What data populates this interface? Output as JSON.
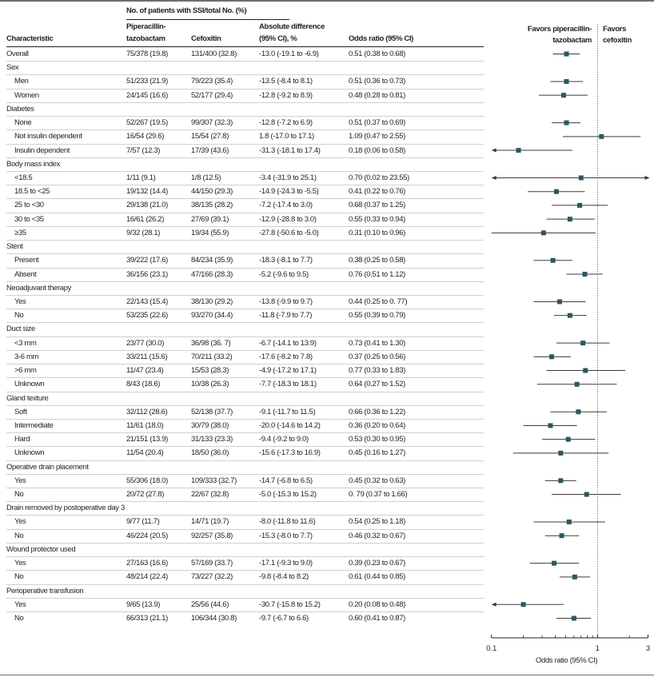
{
  "header": {
    "group_label": "No. of patients with SSI/total No. (%)",
    "characteristic": "Characteristic",
    "pip_line1": "Piperacillin-",
    "pip_line2": "tazobactam",
    "cefoxitin": "Cefoxitin",
    "absdiff_line1": "Absolute difference",
    "absdiff_line2": "(95% CI), %",
    "or": "Odds ratio (95% CI)",
    "favors_left_line1": "Favors piperacillin-",
    "favors_left_line2": "tazobactam",
    "favors_right_line1": "Favors",
    "favors_right_line2": "cefoxitin"
  },
  "chart_data": {
    "type": "forest",
    "xlabel": "Odds ratio (95% CI)",
    "xscale": "log",
    "xlim": [
      0.1,
      3
    ],
    "xticks": [
      0.1,
      1,
      3
    ],
    "xtick_labels": [
      "0.1",
      "1",
      "3"
    ],
    "minor_ticks": [
      0.2,
      0.3,
      0.4,
      0.5,
      0.6,
      0.7,
      0.8,
      0.9,
      2
    ],
    "reference_line": 1,
    "colors": {
      "marker": "#2c5663",
      "line": "#3a3a3a"
    },
    "rows": [
      {
        "label": "Overall",
        "indent": false,
        "pip": "75/378 (19.8)",
        "cef": "131/400 (32.8)",
        "diff": "-13.0 (-19.1 to -6.9)",
        "or_text": "0.51 (0.38 to 0.68)",
        "or": 0.51,
        "lo": 0.38,
        "hi": 0.68
      },
      {
        "label": "Sex",
        "group": true
      },
      {
        "label": "Men",
        "indent": true,
        "pip": "51/233 (21.9)",
        "cef": "79/223 (35.4)",
        "diff": "-13.5 (-8.4 to 8.1)",
        "or_text": "0.51 (0.36 to 0.73)",
        "or": 0.51,
        "lo": 0.36,
        "hi": 0.73
      },
      {
        "label": "Women",
        "indent": true,
        "pip": "24/145 (16.6)",
        "cef": "52/177 (29.4)",
        "diff": "-12.8 (-9.2 to 8.9)",
        "or_text": "0.48 (0.28 to 0.81)",
        "or": 0.48,
        "lo": 0.28,
        "hi": 0.81
      },
      {
        "label": "Diabetes",
        "group": true
      },
      {
        "label": "None",
        "indent": true,
        "pip": "52/267 (19.5)",
        "cef": "99/307 (32.3)",
        "diff": "-12.8 (-7.2 to 6.9)",
        "or_text": "0.51 (0.37 to 0.69)",
        "or": 0.51,
        "lo": 0.37,
        "hi": 0.69
      },
      {
        "label": "Not insulin dependent",
        "indent": true,
        "pip": "16/54 (29.6)",
        "cef": "15/54 (27.8)",
        "diff": "1.8 (-17.0 to 17.1)",
        "or_text": "1.09 (0.47 to 2.55)",
        "or": 1.09,
        "lo": 0.47,
        "hi": 2.55
      },
      {
        "label": "Insulin dependent",
        "indent": true,
        "pip": "7/57 (12.3)",
        "cef": "17/39 (43.6)",
        "diff": "-31.3 (-18.1 to 17.4)",
        "or_text": "0.18 (0.06 to 0.58)",
        "or": 0.18,
        "lo": 0.06,
        "hi": 0.58
      },
      {
        "label": "Body mass index",
        "group": true
      },
      {
        "label": "<18.5",
        "indent": true,
        "pip": "1/11 (9.1)",
        "cef": "1/8 (12.5)",
        "diff": "-3.4 (-31.9 to 25.1)",
        "or_text": "0.70 (0.02 to 23.55)",
        "or": 0.7,
        "lo": 0.02,
        "hi": 23.55
      },
      {
        "label": "18.5 to <25",
        "indent": true,
        "pip": "19/132 (14.4)",
        "cef": "44/150 (29.3)",
        "diff": "-14.9 (-24.3 to -5.5)",
        "or_text": "0.41 (0.22 to 0.76)",
        "or": 0.41,
        "lo": 0.22,
        "hi": 0.76
      },
      {
        "label": "25 to <30",
        "indent": true,
        "pip": "29/138 (21.0)",
        "cef": "38/135 (28.2)",
        "diff": "-7.2 (-17.4 to 3.0)",
        "or_text": "0.68 (0.37 to 1.25)",
        "or": 0.68,
        "lo": 0.37,
        "hi": 1.25
      },
      {
        "label": "30 to <35",
        "indent": true,
        "pip": "16/61 (26.2)",
        "cef": "27/69 (39.1)",
        "diff": "-12.9 (-28.8 to 3.0)",
        "or_text": "0.55 (0.33 to 0.94)",
        "or": 0.55,
        "lo": 0.33,
        "hi": 0.94
      },
      {
        "label": "≥35",
        "indent": true,
        "pip": "9/32 (28.1)",
        "cef": "19/34 (55.9)",
        "diff": "-27.8 (-50.6 to -5.0)",
        "or_text": "0.31 (0.10 to 0.96)",
        "or": 0.31,
        "lo": 0.1,
        "hi": 0.96
      },
      {
        "label": "Stent",
        "group": true
      },
      {
        "label": "Present",
        "indent": true,
        "pip": "39/222 (17.6)",
        "cef": "84/234 (35.9)",
        "diff": "-18.3 (-8.1 to 7.7)",
        "or_text": "0.38 (0.25 to 0.58)",
        "or": 0.38,
        "lo": 0.25,
        "hi": 0.58
      },
      {
        "label": "Absent",
        "indent": true,
        "pip": "36/156 (23.1)",
        "cef": "47/166 (28.3)",
        "diff": "-5.2 (-9.6 to 9.5)",
        "or_text": "0.76 (0.51 to 1.12)",
        "or": 0.76,
        "lo": 0.51,
        "hi": 1.12
      },
      {
        "label": "Neoadjuvant therapy",
        "group": true
      },
      {
        "label": "Yes",
        "indent": true,
        "pip": "22/143 (15.4)",
        "cef": "38/130 (29.2)",
        "diff": "-13.8 (-9.9 to 9.7)",
        "or_text": "0.44 (0.25 to 0. 77)",
        "or": 0.44,
        "lo": 0.25,
        "hi": 0.77
      },
      {
        "label": "No",
        "indent": true,
        "pip": "53/235 (22.6)",
        "cef": "93/270 (34.4)",
        "diff": "-11.8 (-7.9 to 7.7)",
        "or_text": "0.55 (0.39 to 0.79)",
        "or": 0.55,
        "lo": 0.39,
        "hi": 0.79
      },
      {
        "label": "Duct size",
        "group": true
      },
      {
        "label": "<3 mm",
        "indent": true,
        "pip": "23/77 (30.0)",
        "cef": "36/98 (36. 7)",
        "diff": "-6.7 (-14.1 to 13.9)",
        "or_text": "0.73 (0.41 to 1.30)",
        "or": 0.73,
        "lo": 0.41,
        "hi": 1.3
      },
      {
        "label": "3-6 mm",
        "indent": true,
        "pip": "33/211 (15.6)",
        "cef": "70/211 (33.2)",
        "diff": "-17.6 (-8.2 to 7.8)",
        "or_text": "0.37 (0.25 to 0.56)",
        "or": 0.37,
        "lo": 0.25,
        "hi": 0.56
      },
      {
        "label": ">6 mm",
        "indent": true,
        "pip": "11/47 (23.4)",
        "cef": "15/53 (28.3)",
        "diff": "-4.9 (-17.2 to 17.1)",
        "or_text": "0.77 (0.33 to 1.83)",
        "or": 0.77,
        "lo": 0.33,
        "hi": 1.83
      },
      {
        "label": "Unknown",
        "indent": true,
        "pip": "8/43 (18.6)",
        "cef": "10/38 (26.3)",
        "diff": "-7.7 (-18.3 to 18.1)",
        "or_text": "0.64 (0.27 to 1.52)",
        "or": 0.64,
        "lo": 0.27,
        "hi": 1.52
      },
      {
        "label": "Gland texture",
        "group": true
      },
      {
        "label": "Soft",
        "indent": true,
        "pip": "32/112 (28.6)",
        "cef": "52/138 (37.7)",
        "diff": "-9.1 (-11.7 to 11.5)",
        "or_text": "0.66 (0.36 to 1.22)",
        "or": 0.66,
        "lo": 0.36,
        "hi": 1.22
      },
      {
        "label": "Intermediate",
        "indent": true,
        "pip": "11/61 (18.0)",
        "cef": "30/79 (38.0)",
        "diff": "-20.0 (-14.6 to 14.2)",
        "or_text": "0.36 (0.20 to 0.64)",
        "or": 0.36,
        "lo": 0.2,
        "hi": 0.64
      },
      {
        "label": "Hard",
        "indent": true,
        "pip": "21/151 (13.9)",
        "cef": "31/133 (23.3)",
        "diff": "-9.4 (-9.2 to 9.0)",
        "or_text": "0.53 (0.30 to 0.95)",
        "or": 0.53,
        "lo": 0.3,
        "hi": 0.95
      },
      {
        "label": "Unknown",
        "indent": true,
        "pip": "11/54 (20.4)",
        "cef": "18/50 (36.0)",
        "diff": "-15.6 (-17.3 to 16.9)",
        "or_text": "0.45 (0.16 to 1.27)",
        "or": 0.45,
        "lo": 0.16,
        "hi": 1.27
      },
      {
        "label": "Operative drain placement",
        "group": true
      },
      {
        "label": "Yes",
        "indent": true,
        "pip": "55/306 (18.0)",
        "cef": "109/333 (32.7)",
        "diff": "-14.7 (-6.8 to 6.5)",
        "or_text": "0.45 (0.32 to 0.63)",
        "or": 0.45,
        "lo": 0.32,
        "hi": 0.63
      },
      {
        "label": "No",
        "indent": true,
        "pip": "20/72 (27.8)",
        "cef": "22/67 (32.8)",
        "diff": "-5.0 (-15.3 to 15.2)",
        "or_text": "0. 79 (0.37 to 1.66)",
        "or": 0.79,
        "lo": 0.37,
        "hi": 1.66
      },
      {
        "label": "Drain removed by postoperative day 3",
        "group": true
      },
      {
        "label": "Yes",
        "indent": true,
        "pip": "9/77 (11.7)",
        "cef": "14/71 (19.7)",
        "diff": "-8.0 (-11.8 to 11.6)",
        "or_text": "0.54 (0.25 to 1.18)",
        "or": 0.54,
        "lo": 0.25,
        "hi": 1.18
      },
      {
        "label": "No",
        "indent": true,
        "pip": "46/224 (20.5)",
        "cef": "92/257 (35.8)",
        "diff": "-15.3 (-8.0 to 7.7)",
        "or_text": "0.46 (0.32 to 0.67)",
        "or": 0.46,
        "lo": 0.32,
        "hi": 0.67
      },
      {
        "label": "Wound protector used",
        "group": true
      },
      {
        "label": "Yes",
        "indent": true,
        "pip": "27/163 (16.6)",
        "cef": "57/169 (33.7)",
        "diff": "-17.1 (-9.3 to 9.0)",
        "or_text": "0.39 (0.23 to 0.67)",
        "or": 0.39,
        "lo": 0.23,
        "hi": 0.67
      },
      {
        "label": "No",
        "indent": true,
        "pip": "48/214 (22.4)",
        "cef": "73/227 (32.2)",
        "diff": "-9.8 (-8.4 to 8.2)",
        "or_text": "0.61 (0.44 to 0.85)",
        "or": 0.61,
        "lo": 0.44,
        "hi": 0.85
      },
      {
        "label": "Perioperative transfusion",
        "group": true
      },
      {
        "label": "Yes",
        "indent": true,
        "pip": "9/65 (13.9)",
        "cef": "25/56 (44.6)",
        "diff": "-30.7 (-15.8 to 15.2)",
        "or_text": "0.20 (0.08 to 0.48)",
        "or": 0.2,
        "lo": 0.08,
        "hi": 0.48
      },
      {
        "label": "No",
        "indent": true,
        "pip": "66/313 (21.1)",
        "cef": "106/344 (30.8)",
        "diff": "-9.7 (-6.7 to 6.6)",
        "or_text": "0.60 (0.41 to 0.87)",
        "or": 0.6,
        "lo": 0.41,
        "hi": 0.87
      }
    ]
  }
}
